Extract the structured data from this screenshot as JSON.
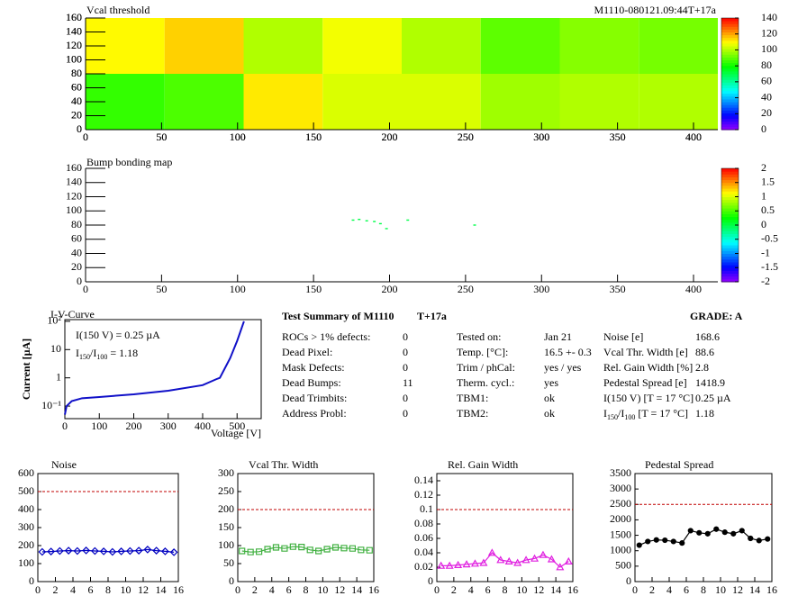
{
  "chart_data": [
    {
      "type": "heatmap",
      "title": "Vcal threshold",
      "subtitle": "M1110-080121.09:44T+17a",
      "x_bins": [
        0,
        52,
        104,
        156,
        208,
        260,
        312,
        364,
        416
      ],
      "y_bins": [
        0,
        80,
        160
      ],
      "z": [
        [
          85,
          88,
          112,
          105,
          105,
          98,
          100,
          100
        ],
        [
          110,
          115,
          100,
          108,
          100,
          90,
          95,
          93
        ]
      ],
      "zlim": [
        0,
        140
      ],
      "zticks": [
        0,
        20,
        40,
        60,
        80,
        100,
        120,
        140
      ],
      "xlim": [
        0,
        416
      ],
      "xticks": [
        0,
        50,
        100,
        150,
        200,
        250,
        300,
        350,
        400
      ],
      "ylim": [
        0,
        160
      ],
      "yticks": [
        0,
        20,
        40,
        60,
        80,
        100,
        120,
        140,
        160
      ]
    },
    {
      "type": "scatter",
      "title": "Bump bonding map",
      "x": [
        176,
        180,
        185,
        190,
        194,
        198,
        212,
        256
      ],
      "y": [
        87,
        88,
        86,
        85,
        82,
        75,
        87,
        80
      ],
      "values": [
        0,
        0,
        0,
        0,
        0,
        0,
        0,
        0
      ],
      "zlim": [
        -2,
        2
      ],
      "zticks": [
        -2,
        -1.5,
        -1,
        -0.5,
        0,
        0.5,
        1,
        1.5,
        2
      ],
      "xlim": [
        0,
        416
      ],
      "xticks": [
        0,
        50,
        100,
        150,
        200,
        250,
        300,
        350,
        400
      ],
      "ylim": [
        0,
        160
      ],
      "yticks": [
        0,
        20,
        40,
        60,
        80,
        100,
        120,
        140,
        160
      ]
    },
    {
      "type": "line",
      "title": "I-V-Curve",
      "x_label": "Voltage [V]",
      "y_label": "Current [µA]",
      "x": [
        0,
        5,
        20,
        50,
        100,
        200,
        300,
        400,
        440,
        450,
        480,
        500,
        520
      ],
      "values": [
        0.05,
        0.1,
        0.15,
        0.19,
        0.21,
        0.26,
        0.35,
        0.55,
        0.9,
        1,
        5,
        20,
        100
      ],
      "color": "#1010c8",
      "log_y": true,
      "annotations": [
        "I(150 V) = 0.25 µA",
        [
          "I",
          "150",
          "/I",
          "100",
          " =  1.18"
        ]
      ],
      "xlim": [
        0,
        570
      ],
      "xticks": [
        0,
        100,
        200,
        300,
        400,
        500
      ],
      "ylim": [
        0.036,
        115
      ],
      "yticks": [
        {
          "value": 0.1,
          "label": "10⁻¹"
        },
        1,
        10,
        {
          "value": 100,
          "label": "10²"
        }
      ]
    },
    {
      "type": "line",
      "title": "Noise",
      "marker": "diamond",
      "color": "#0000c0",
      "x": [
        0.5,
        1.5,
        2.5,
        3.5,
        4.5,
        5.5,
        6.5,
        7.5,
        8.5,
        9.5,
        10.5,
        11.5,
        12.5,
        13.5,
        14.5,
        15.5
      ],
      "values": [
        165,
        167,
        170,
        172,
        170,
        173,
        170,
        168,
        165,
        168,
        170,
        172,
        178,
        172,
        168,
        163
      ],
      "threshold": 500,
      "threshold_color": "#c00000",
      "xlim": [
        0,
        16
      ],
      "xticks": [
        0,
        2,
        4,
        6,
        8,
        10,
        12,
        14,
        16
      ],
      "ylim": [
        0,
        600
      ],
      "yticks": [
        0,
        100,
        200,
        300,
        400,
        500,
        600
      ]
    },
    {
      "type": "line",
      "title": "Vcal Thr. Width",
      "marker": "square",
      "color": "#40b040",
      "x": [
        0.5,
        1.5,
        2.5,
        3.5,
        4.5,
        5.5,
        6.5,
        7.5,
        8.5,
        9.5,
        10.5,
        11.5,
        12.5,
        13.5,
        14.5,
        15.5
      ],
      "values": [
        85,
        82,
        83,
        90,
        95,
        92,
        97,
        96,
        88,
        85,
        90,
        95,
        93,
        92,
        88,
        87
      ],
      "threshold": 200,
      "threshold_color": "#c00000",
      "xlim": [
        0,
        16
      ],
      "xticks": [
        0,
        2,
        4,
        6,
        8,
        10,
        12,
        14,
        16
      ],
      "ylim": [
        0,
        300
      ],
      "yticks": [
        0,
        50,
        100,
        150,
        200,
        250,
        300
      ]
    },
    {
      "type": "line",
      "title": "Rel. Gain Width",
      "marker": "triangle",
      "color": "#e020e0",
      "x": [
        0.5,
        1.5,
        2.5,
        3.5,
        4.5,
        5.5,
        6.5,
        7.5,
        8.5,
        9.5,
        10.5,
        11.5,
        12.5,
        13.5,
        14.5,
        15.5
      ],
      "values": [
        0.022,
        0.022,
        0.023,
        0.024,
        0.025,
        0.026,
        0.04,
        0.03,
        0.028,
        0.026,
        0.03,
        0.032,
        0.037,
        0.031,
        0.02,
        0.028
      ],
      "threshold": 0.1,
      "threshold_color": "#c00000",
      "xlim": [
        0,
        16
      ],
      "xticks": [
        0,
        2,
        4,
        6,
        8,
        10,
        12,
        14,
        16
      ],
      "ylim": [
        0,
        0.15
      ],
      "yticks": [
        0,
        0.02,
        0.04,
        0.06,
        0.08,
        0.1,
        0.12,
        0.14
      ]
    },
    {
      "type": "line",
      "title": "Pedestal Spread",
      "marker": "circle",
      "color": "#000000",
      "x": [
        0.5,
        1.5,
        2.5,
        3.5,
        4.5,
        5.5,
        6.5,
        7.5,
        8.5,
        9.5,
        10.5,
        11.5,
        12.5,
        13.5,
        14.5,
        15.5
      ],
      "values": [
        1180,
        1300,
        1350,
        1340,
        1300,
        1250,
        1650,
        1580,
        1550,
        1700,
        1600,
        1550,
        1650,
        1400,
        1330,
        1380
      ],
      "threshold": 2500,
      "threshold_color": "#c00000",
      "xlim": [
        0,
        16
      ],
      "xticks": [
        0,
        2,
        4,
        6,
        8,
        10,
        12,
        14,
        16
      ],
      "ylim": [
        0,
        3500
      ],
      "yticks": [
        0,
        500,
        1000,
        1500,
        2000,
        2500,
        3000,
        3500
      ]
    }
  ],
  "summary": {
    "title": "Test Summary of M1110",
    "tag": "T+17a",
    "grade": "GRADE:  A",
    "columns": [
      [
        [
          "ROCs > 1% defects:",
          0
        ],
        [
          "Dead Pixel:",
          0
        ],
        [
          "Mask Defects:",
          0
        ],
        [
          "Dead Bumps:",
          11
        ],
        [
          "Dead Trimbits:",
          0
        ],
        [
          "Address Probl:",
          0
        ]
      ],
      [
        [
          "Tested on:",
          "Jan 21"
        ],
        [
          "Temp. [°C]:",
          "16.5 +- 0.3"
        ],
        [
          "Trim / phCal:",
          "yes / yes"
        ],
        [
          "Therm. cycl.:",
          "yes"
        ],
        [
          "TBM1:",
          "ok"
        ],
        [
          "TBM2:",
          "ok"
        ]
      ],
      [
        [
          "Noise [e]",
          168.6
        ],
        [
          "Vcal Thr. Width [e]",
          88.6
        ],
        [
          "Rel. Gain Width [%]",
          2.8
        ],
        [
          "Pedestal Spread [e]",
          1418.9
        ],
        [
          "I(150 V) [T = 17 °C]",
          "0.25 µA"
        ],
        [
          [
            "I",
            "150",
            "/I",
            "100",
            "  [T = 17 °C]"
          ],
          1.18
        ]
      ]
    ]
  }
}
